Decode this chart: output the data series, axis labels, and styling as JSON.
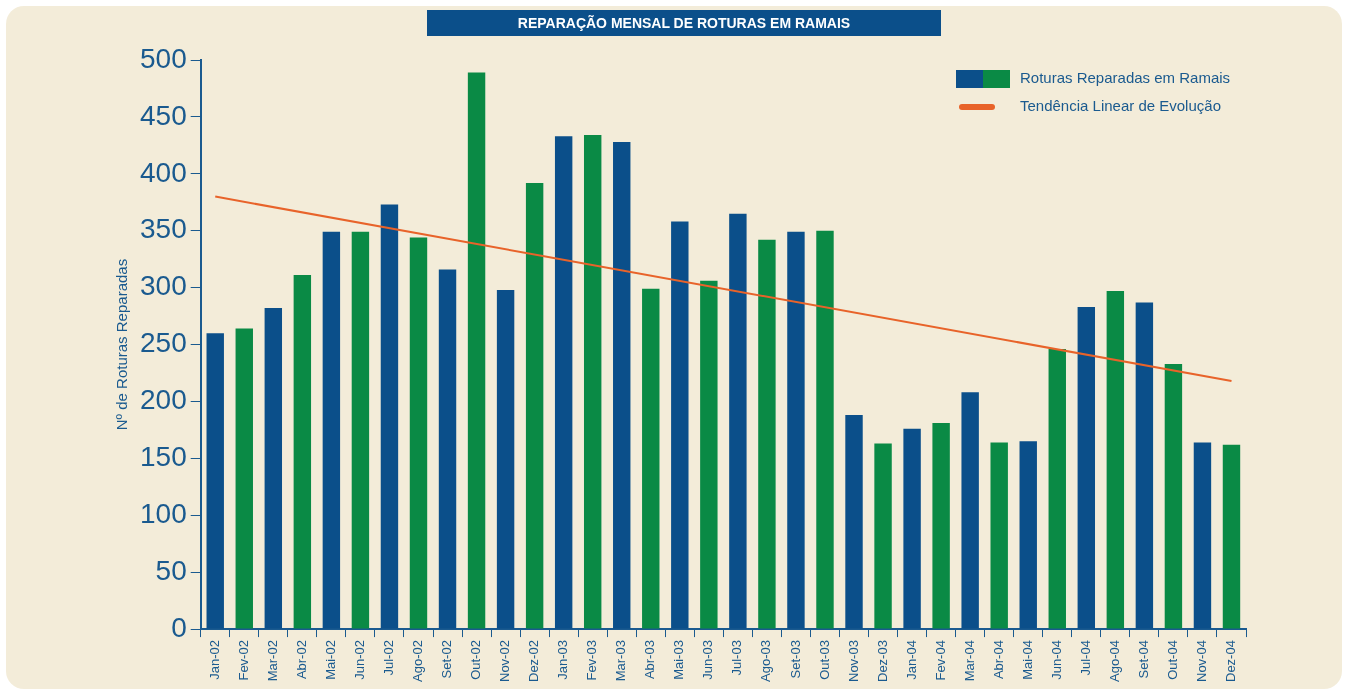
{
  "chart_data": {
    "type": "bar",
    "title": "REPARAÇÃO MENSAL DE ROTURAS EM RAMAIS",
    "ylabel": "Nº de Roturas Reparadas",
    "categories": [
      "Jan-02",
      "Fev-02",
      "Mar-02",
      "Abr-02",
      "Mai-02",
      "Jun-02",
      "Jul-02",
      "Ago-02",
      "Set-02",
      "Out-02",
      "Nov-02",
      "Dez-02",
      "Jan-03",
      "Fev-03",
      "Mar-03",
      "Abr-03",
      "Mai-03",
      "Jun-03",
      "Jul-03",
      "Ago-03",
      "Set-03",
      "Out-03",
      "Nov-03",
      "Dez-03",
      "Jan-04",
      "Fev-04",
      "Mar-04",
      "Abr-04",
      "Mai-04",
      "Jun-04",
      "Jul-04",
      "Ago-04",
      "Set-04",
      "Out-04",
      "Nov-04",
      "Dez-04"
    ],
    "series": [
      {
        "name": "Roturas Reparadas em Ramais",
        "colors": [
          "#0b4f8a",
          "#0a8a45",
          "#0b4f8a",
          "#0a8a45",
          "#0b4f8a",
          "#0a8a45",
          "#0b4f8a",
          "#0a8a45",
          "#0b4f8a",
          "#0a8a45",
          "#0b4f8a",
          "#0a8a45",
          "#0b4f8a",
          "#0a8a45",
          "#0b4f8a",
          "#0a8a45",
          "#0b4f8a",
          "#0a8a45",
          "#0b4f8a",
          "#0a8a45",
          "#0b4f8a",
          "#0a8a45",
          "#0b4f8a",
          "#0a8a45",
          "#0b4f8a",
          "#0a8a45",
          "#0b4f8a",
          "#0a8a45",
          "#0b4f8a",
          "#0a8a45",
          "#0b4f8a",
          "#0a8a45",
          "#0b4f8a",
          "#0a8a45",
          "#0b4f8a",
          "#0a8a45"
        ],
        "values": [
          260,
          264,
          282,
          311,
          349,
          349,
          373,
          344,
          316,
          489,
          298,
          392,
          433,
          434,
          428,
          299,
          358,
          306,
          365,
          342,
          349,
          350,
          188,
          163,
          176,
          181,
          208,
          164,
          165,
          246,
          283,
          297,
          287,
          233,
          164,
          162
        ]
      },
      {
        "name": "Tendência Linear de Evolução",
        "type": "line",
        "color": "#e8632a",
        "x": [
          "Jan-02",
          "Dez-04"
        ],
        "values": [
          380,
          218
        ]
      }
    ],
    "ylim": [
      0,
      500
    ],
    "yticks": [
      0,
      50,
      100,
      150,
      200,
      250,
      300,
      350,
      400,
      450,
      500
    ],
    "legend": "top right"
  }
}
